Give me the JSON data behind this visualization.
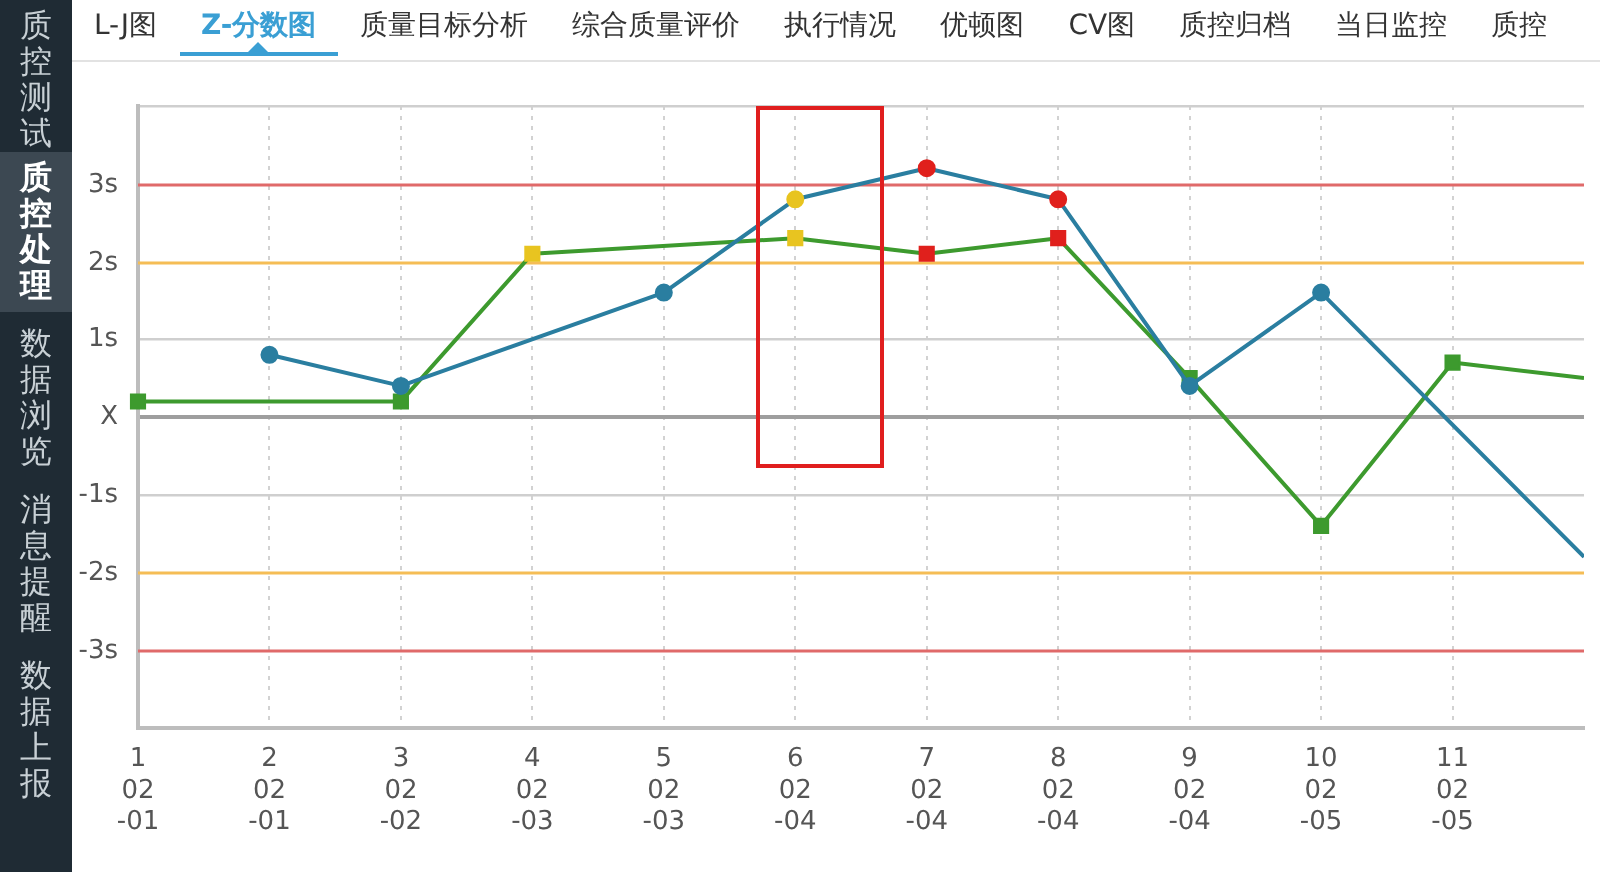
{
  "chart_data": [
    {
      "type": "other",
      "annotations": [
        "质控测试",
        "质控处理",
        "数据浏览",
        "消息提醒",
        "数据上报"
      ]
    },
    {
      "type": "other",
      "annotations": [
        "L-J图",
        "Z-分数图",
        "质量目标分析",
        "综合质量评价",
        "执行情况",
        "优顿图",
        "CV图",
        "质控归档",
        "当日监控",
        "质控"
      ]
    },
    {
      "type": "line",
      "categories": [
        "1\n02\n-01",
        "2\n02\n-01",
        "3\n02\n-02",
        "4\n02\n-03",
        "5\n02\n-03",
        "6\n02\n-04",
        "7\n02\n-04",
        "8\n02\n-04",
        "9\n02\n-04",
        "10\n02\n-05",
        "11\n02\n-05",
        null
      ],
      "series": [
        {
          "color": "#2a7ea0",
          "marker": "circle",
          "colors": [
            null,
            "#2a7ea0",
            "#2a7ea0",
            null,
            "#2a7ea0",
            "#e8c420",
            "#e0201c",
            "#e0201c",
            "#2a7ea0",
            "#2a7ea0",
            null,
            null
          ],
          "values": [
            null,
            0.8,
            0.4,
            null,
            1.6,
            2.8,
            3.2,
            2.8,
            0.4,
            1.6,
            null,
            -1.8
          ]
        },
        {
          "color": "#3d9a2e",
          "marker": "square",
          "colors": [
            "#3d9a2e",
            null,
            "#3d9a2e",
            "#e8c420",
            null,
            "#e8c420",
            "#e0201c",
            "#e0201c",
            "#3d9a2e",
            "#3d9a2e",
            "#3d9a2e",
            null
          ],
          "values": [
            0.2,
            null,
            0.2,
            2.1,
            null,
            2.3,
            2.1,
            2.3,
            0.5,
            -1.4,
            0.7,
            0.5
          ]
        }
      ],
      "ylim": [
        -4,
        4
      ],
      "yticks": [
        {
          "value": -4,
          "label": null
        },
        {
          "value": -1,
          "label": "-1s"
        },
        {
          "value": 0,
          "label": "X"
        },
        {
          "value": 1,
          "label": "1s"
        },
        {
          "value": 4,
          "label": null
        }
      ],
      "ref_lines": [
        {
          "axis": "y",
          "value": 3,
          "label": "3s",
          "color": "#e06a6a"
        },
        {
          "axis": "y",
          "value": 2,
          "label": "2s",
          "color": "#f5bd55"
        },
        {
          "axis": "y",
          "value": -2,
          "label": "-2s",
          "color": "#f5bd55"
        },
        {
          "axis": "y",
          "value": -3,
          "label": "-3s",
          "color": "#e06a6a"
        }
      ],
      "grid": true
    }
  ]
}
